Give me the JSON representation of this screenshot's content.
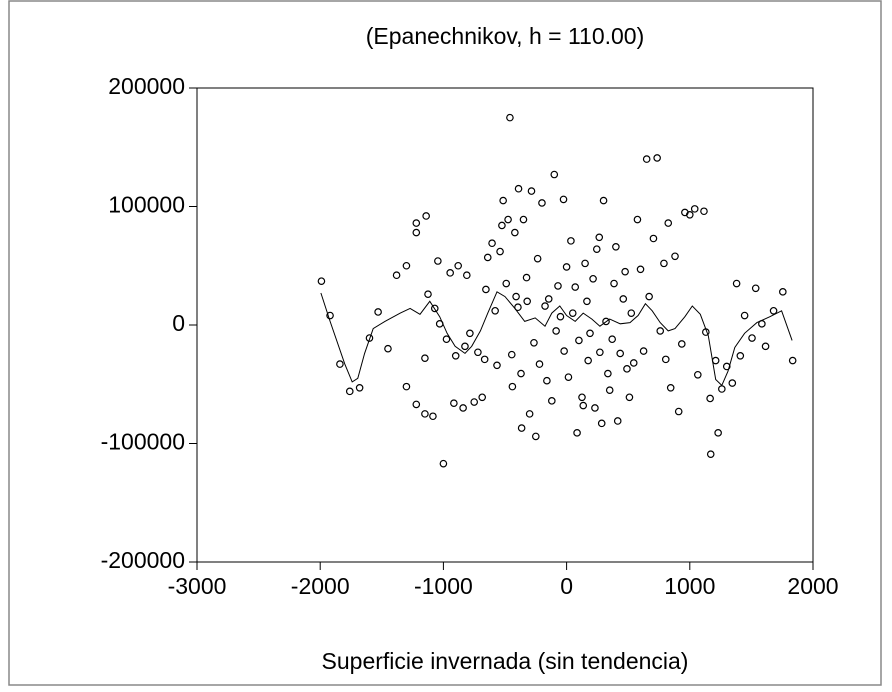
{
  "chart_data": {
    "type": "scatter",
    "title": "(Epanechnikov, h = 110.00)",
    "xlabel": "Superficie invernada (sin tendencia)",
    "xlim": [
      -3000,
      2000
    ],
    "ylim": [
      -200000,
      200000
    ],
    "xticks": [
      -3000,
      -2000,
      -1000,
      0,
      1000,
      2000
    ],
    "yticks": [
      -200000,
      -100000,
      0,
      100000,
      200000
    ],
    "color": "#000000",
    "x": [
      -1990,
      -1920,
      -1840,
      -1760,
      -1680,
      -1600,
      -1530,
      -1450,
      -1380,
      -1300,
      -1300,
      -1220,
      -1220,
      -1140,
      -1220,
      -1150,
      -1085,
      -1150,
      -1125,
      -1070,
      -1030,
      -1045,
      -1000,
      -975,
      -945,
      -915,
      -900,
      -880,
      -840,
      -810,
      -825,
      -785,
      -750,
      -720,
      -685,
      -665,
      -655,
      -640,
      -605,
      -580,
      -565,
      -540,
      -525,
      -515,
      -490,
      -475,
      -460,
      -445,
      -440,
      -420,
      -410,
      -395,
      -390,
      -370,
      -365,
      -350,
      -325,
      -320,
      -300,
      -285,
      -265,
      -250,
      -235,
      -220,
      -200,
      -175,
      -160,
      -145,
      -120,
      -100,
      -85,
      -70,
      -50,
      -25,
      -20,
      0,
      15,
      35,
      50,
      70,
      85,
      100,
      125,
      135,
      150,
      165,
      175,
      190,
      215,
      230,
      245,
      265,
      270,
      285,
      300,
      320,
      335,
      350,
      370,
      385,
      400,
      415,
      435,
      460,
      475,
      490,
      510,
      525,
      545,
      575,
      600,
      625,
      650,
      670,
      705,
      735,
      760,
      790,
      805,
      825,
      845,
      880,
      910,
      935,
      960,
      1000,
      1040,
      1065,
      1115,
      1130,
      1165,
      1170,
      1210,
      1230,
      1260,
      1300,
      1345,
      1380,
      1410,
      1445,
      1505,
      1535,
      1585,
      1615,
      1680,
      1755,
      1835
    ],
    "y": [
      37000,
      8000,
      -33000,
      -56000,
      -53000,
      -11000,
      11000,
      -20000,
      42000,
      50000,
      -52000,
      78000,
      86000,
      92000,
      -67000,
      -75000,
      -77000,
      -28000,
      26000,
      14000,
      1000,
      54000,
      -117000,
      -12000,
      44000,
      -66000,
      -26000,
      50000,
      -70000,
      42000,
      -18000,
      -7000,
      -65000,
      -23000,
      -61000,
      -29000,
      30000,
      57000,
      69000,
      12000,
      -34000,
      62000,
      84000,
      105000,
      35000,
      89000,
      175000,
      -25000,
      -52000,
      78000,
      24000,
      15000,
      115000,
      -41000,
      -87000,
      89000,
      40000,
      20000,
      -75000,
      113000,
      -15000,
      -94000,
      56000,
      -33000,
      103000,
      16000,
      -47000,
      22000,
      -64000,
      127000,
      -5000,
      33000,
      7000,
      106000,
      -22000,
      49000,
      -44000,
      71000,
      10000,
      32000,
      -91000,
      -13000,
      -61000,
      -68000,
      52000,
      20000,
      -30000,
      -7000,
      39000,
      -70000,
      64000,
      74000,
      -23000,
      -83000,
      105000,
      3000,
      -41000,
      -55000,
      -12000,
      35000,
      66000,
      -81000,
      -24000,
      22000,
      45000,
      -37000,
      -61000,
      10000,
      -32000,
      89000,
      47000,
      -22000,
      140000,
      24000,
      73000,
      141000,
      -5000,
      52000,
      -29000,
      86000,
      -53000,
      58000,
      -73000,
      -16000,
      95000,
      93000,
      98000,
      -42000,
      96000,
      -6000,
      -62000,
      -109000,
      -30000,
      -91000,
      -54000,
      -35000,
      -49000,
      35000,
      -26000,
      8000,
      -11000,
      31000,
      1000,
      -18000,
      12000,
      28000,
      -30000
    ],
    "line": {
      "x": [
        -1994,
        -1920,
        -1800,
        -1740,
        -1695,
        -1640,
        -1570,
        -1475,
        -1350,
        -1270,
        -1190,
        -1110,
        -1030,
        -970,
        -905,
        -825,
        -770,
        -700,
        -640,
        -565,
        -500,
        -420,
        -340,
        -255,
        -175,
        -120,
        -55,
        0,
        70,
        135,
        205,
        270,
        350,
        435,
        515,
        580,
        640,
        695,
        760,
        825,
        880,
        960,
        1020,
        1085,
        1150,
        1210,
        1260,
        1310,
        1365,
        1445,
        1545,
        1650,
        1745,
        1830
      ],
      "y": [
        27000,
        3000,
        -33000,
        -48000,
        -45000,
        -24000,
        -3000,
        3000,
        10000,
        14000,
        9000,
        20000,
        7000,
        -7000,
        -18000,
        -24000,
        -18000,
        -5000,
        10000,
        28000,
        24000,
        14000,
        3000,
        6000,
        -1000,
        10000,
        16000,
        8000,
        3000,
        10000,
        5000,
        -1000,
        5000,
        1000,
        2000,
        8000,
        18000,
        12000,
        2000,
        -5000,
        -3000,
        7000,
        16000,
        9000,
        -9000,
        -46000,
        -51000,
        -39000,
        -19000,
        -7000,
        2000,
        7000,
        12000,
        -13000
      ]
    }
  }
}
